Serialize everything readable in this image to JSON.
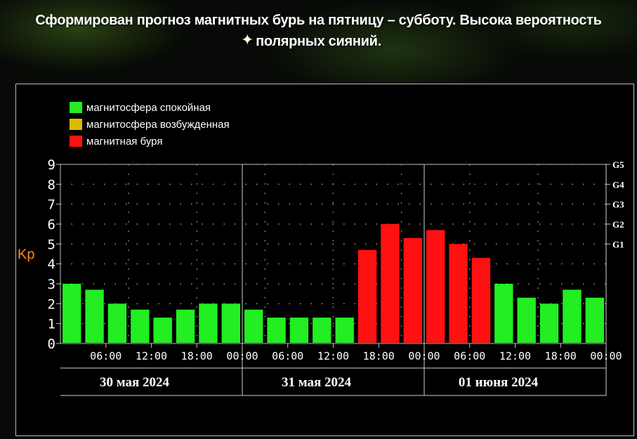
{
  "headline": "Сформирован прогноз магнитных бурь на пятницу – субботу. Высока вероятность полярных сияний.",
  "legend": [
    {
      "label": "магнитосфера спокойная",
      "color": "#22ee22"
    },
    {
      "label": "магнитосфера возбужденная",
      "color": "#ddbb00"
    },
    {
      "label": "магнитная буря",
      "color": "#ff1111"
    }
  ],
  "chart_data": {
    "type": "bar",
    "ylabel": "Kp",
    "ylim": [
      0,
      9
    ],
    "y_ticks": [
      "0",
      "1",
      "2",
      "3",
      "4",
      "5",
      "6",
      "7",
      "8",
      "9"
    ],
    "g_scale": [
      {
        "label": "G1",
        "kp": 5
      },
      {
        "label": "G2",
        "kp": 6
      },
      {
        "label": "G3",
        "kp": 7
      },
      {
        "label": "G4",
        "kp": 8
      },
      {
        "label": "G5",
        "kp": 9
      }
    ],
    "x_tick_labels": [
      "06:00",
      "12:00",
      "18:00",
      "00:00",
      "06:00",
      "12:00",
      "18:00",
      "00:00",
      "06:00",
      "12:00",
      "18:00",
      "00:00"
    ],
    "dates": [
      "30 мая 2024",
      "31 мая 2024",
      "01 июня 2024"
    ],
    "categories": [
      "30.05 00:00",
      "30.05 03:00",
      "30.05 06:00",
      "30.05 09:00",
      "30.05 12:00",
      "30.05 15:00",
      "30.05 18:00",
      "30.05 21:00",
      "31.05 00:00",
      "31.05 03:00",
      "31.05 06:00",
      "31.05 09:00",
      "31.05 12:00",
      "31.05 15:00",
      "31.05 18:00",
      "31.05 21:00",
      "01.06 00:00",
      "01.06 03:00",
      "01.06 06:00",
      "01.06 09:00",
      "01.06 12:00",
      "01.06 15:00",
      "01.06 18:00",
      "01.06 21:00"
    ],
    "values": [
      3.0,
      2.7,
      2.0,
      1.7,
      1.3,
      1.7,
      2.0,
      2.0,
      1.7,
      1.3,
      1.3,
      1.3,
      1.3,
      4.7,
      6.0,
      5.3,
      5.7,
      5.0,
      4.3,
      3.0,
      2.3,
      2.0,
      2.7,
      2.3
    ],
    "colors": [
      "#22ee22",
      "#22ee22",
      "#22ee22",
      "#22ee22",
      "#22ee22",
      "#22ee22",
      "#22ee22",
      "#22ee22",
      "#22ee22",
      "#22ee22",
      "#22ee22",
      "#22ee22",
      "#22ee22",
      "#ff1111",
      "#ff1111",
      "#ff1111",
      "#ff1111",
      "#ff1111",
      "#ff1111",
      "#22ee22",
      "#22ee22",
      "#22ee22",
      "#22ee22",
      "#22ee22"
    ],
    "grid": "dotted",
    "legend_position": "top-left"
  }
}
